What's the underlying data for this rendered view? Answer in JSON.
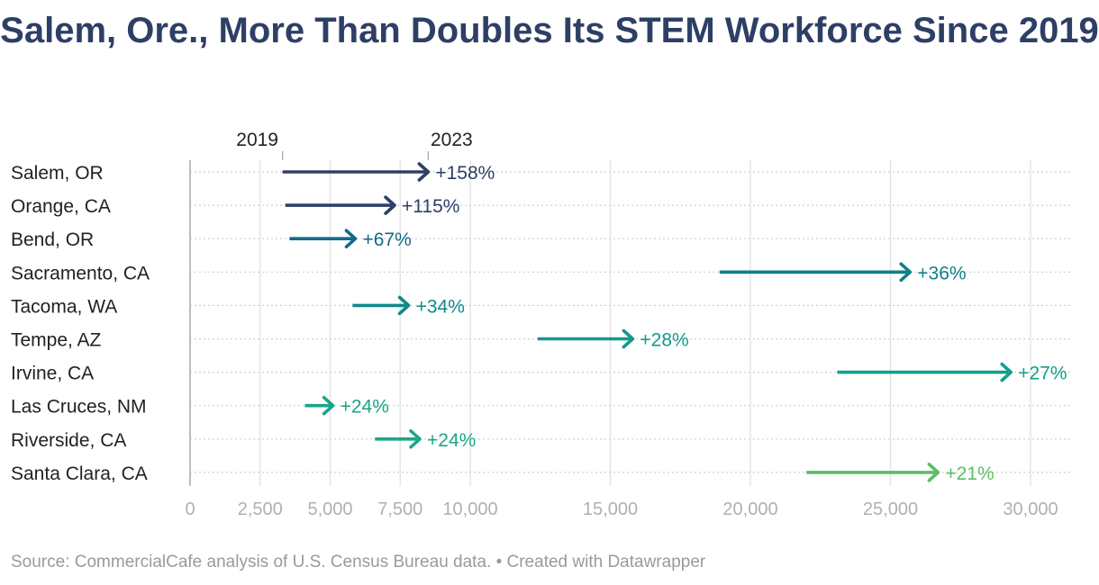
{
  "chart_data": {
    "type": "arrow",
    "title": "Salem, Ore., More Than Doubles Its STEM Workforce Since 2019",
    "legend": {
      "start_label": "2019",
      "end_label": "2023",
      "placement": "top"
    },
    "xlim": [
      0,
      31000
    ],
    "xticks": [
      0,
      2500,
      5000,
      7500,
      10000,
      15000,
      20000,
      25000,
      30000
    ],
    "xtick_labels": [
      "0",
      "2,500",
      "5,000",
      "7,500",
      "10,000",
      "15,000",
      "20,000",
      "25,000",
      "30,000"
    ],
    "grid": true,
    "categories": [
      "Salem, OR",
      "Orange, CA",
      "Bend, OR",
      "Sacramento, CA",
      "Tacoma, WA",
      "Tempe, AZ",
      "Irvine, CA",
      "Las Cruces, NM",
      "Riverside, CA",
      "Santa Clara, CA"
    ],
    "values_2019": [
      3300,
      3400,
      3550,
      18900,
      5800,
      12400,
      23100,
      4100,
      6600,
      22000
    ],
    "values_2023": [
      8500,
      7300,
      5900,
      25700,
      7800,
      15800,
      29300,
      5100,
      8200,
      26700
    ],
    "change_labels": [
      "+158%",
      "+115%",
      "+67%",
      "+36%",
      "+34%",
      "+28%",
      "+27%",
      "+24%",
      "+24%",
      "+21%"
    ],
    "colors": [
      "#2e4066",
      "#2e4066",
      "#136a87",
      "#0f7f88",
      "#0f8a8c",
      "#119a8c",
      "#129f8c",
      "#19a58a",
      "#1da786",
      "#5cbd66"
    ]
  },
  "source": "Source: CommercialCafe analysis of U.S. Census Bureau data. • Created with Datawrapper"
}
